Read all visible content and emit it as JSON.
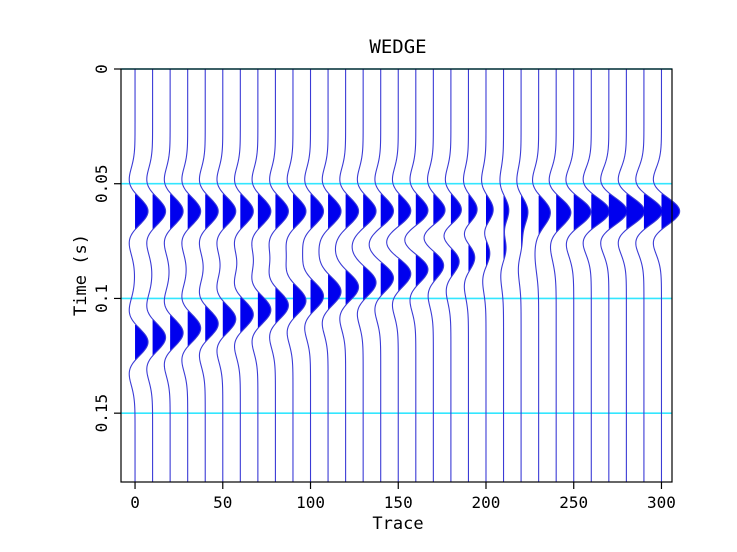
{
  "chart_data": {
    "type": "wiggle-trace",
    "title": "WEDGE",
    "xlabel": "Trace",
    "ylabel": "Time (s)",
    "xlim": [
      -8,
      306
    ],
    "ylim": [
      0,
      0.18
    ],
    "y_reversed": true,
    "x_ticks": [
      "0",
      "50",
      "100",
      "150",
      "200",
      "250",
      "300"
    ],
    "x_tick_values": [
      0,
      50,
      100,
      150,
      200,
      250,
      300
    ],
    "y_ticks": [
      "0",
      "0.05",
      "0.1",
      "0.15"
    ],
    "y_tick_values": [
      0,
      0.05,
      0.1,
      0.15
    ],
    "grid": "horizontal",
    "colors": {
      "trace": "#3b3bd6",
      "fill": "#0000ee",
      "grid": "#33e6ff",
      "axis": "#000000"
    },
    "trace_positions": [
      0,
      10,
      20,
      30,
      40,
      50,
      60,
      70,
      80,
      90,
      100,
      110,
      120,
      130,
      140,
      150,
      160,
      170,
      180,
      190,
      200,
      210,
      220,
      230,
      240,
      250,
      260,
      270,
      280,
      290,
      300
    ],
    "top_reflector_time": 0.062,
    "bottom_reflector_times": [
      0.119,
      0.117,
      0.115,
      0.113,
      0.111,
      0.109,
      0.107,
      0.105,
      0.103,
      0.101,
      0.099,
      0.097,
      0.095,
      0.093,
      0.091,
      0.089,
      0.087,
      0.085,
      0.083,
      0.081,
      0.079,
      0.077,
      0.075,
      0.073,
      0.071,
      0.069,
      0.067,
      0.065,
      0.063,
      0.062,
      0.062
    ],
    "top_amplitudes": [
      1.0,
      1.0,
      1.0,
      1.0,
      1.0,
      1.0,
      1.0,
      1.0,
      1.0,
      1.0,
      1.0,
      1.0,
      1.0,
      1.0,
      1.0,
      1.0,
      1.0,
      1.0,
      0.95,
      0.85,
      0.75,
      0.6,
      0.7,
      1.0,
      1.15,
      1.3,
      1.4,
      1.4,
      1.4,
      1.4,
      1.4
    ],
    "bottom_amplitudes": [
      1.0,
      1.0,
      1.0,
      1.0,
      1.0,
      1.0,
      1.0,
      1.0,
      1.0,
      1.0,
      1.0,
      1.0,
      1.0,
      1.0,
      1.0,
      1.0,
      1.0,
      0.9,
      0.8,
      0.7,
      0.55,
      0.45,
      0.4,
      0.3,
      0.2,
      0.1,
      0.0,
      0.0,
      0.0,
      0.0,
      0.0
    ]
  }
}
